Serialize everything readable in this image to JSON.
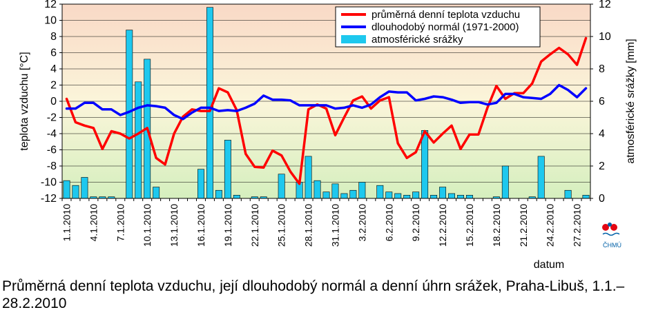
{
  "caption": "Průměrná denní teplota vzduchu, její dlouhodobý normál a denní úhrn srážek, Praha-Libuš, 1.1.–28.2.2010",
  "logo": {
    "text": "ČHMÚ",
    "icon": "chmu-logo-icon"
  },
  "colors": {
    "temp": "#ff0000",
    "normal": "#0000ff",
    "precip_fill": "#1ec8ee",
    "precip_stroke": "#000000"
  },
  "chart_data": {
    "type": "bar+line",
    "xlabel": "datum",
    "ylabel_left": "teplota vzduchu [°C]",
    "ylabel_right": "atmosférické srážky [mm]",
    "ylim_left": [
      -12,
      12
    ],
    "ylim_right": [
      0,
      12
    ],
    "yticks_left": [
      -12,
      -10,
      -8,
      -6,
      -4,
      -2,
      0,
      2,
      4,
      6,
      8,
      10,
      12
    ],
    "yticks_right": [
      0,
      2,
      4,
      6,
      8,
      10,
      12
    ],
    "xtick_labels": [
      "1.1.2010",
      "4.1.2010",
      "7.1.2010",
      "10.1.2010",
      "13.1.2010",
      "16.1.2010",
      "19.1.2010",
      "22.1.2010",
      "25.1.2010",
      "28.1.2010",
      "31.1.2010",
      "3.2.2010",
      "6.2.2010",
      "9.2.2010",
      "12.2.2010",
      "15.2.2010",
      "18.2.2010",
      "21.2.2010",
      "24.2.2010",
      "27.2.2010"
    ],
    "xtick_step_days": 3,
    "grid": "horizontal",
    "legend_position": "top-right",
    "legend": [
      "průměrná denní teplota vzduchu",
      "dlouhodobý normál (1971-2000)",
      "atmosférické srážky"
    ],
    "background_gradient": [
      "#f9d9c6",
      "#fbf5da",
      "#d5efbe"
    ],
    "series": [
      {
        "name": "průměrná denní teplota vzduchu",
        "type": "line",
        "axis": "left",
        "color": "#ff0000",
        "values": [
          0.3,
          -2.6,
          -3.0,
          -3.3,
          -5.9,
          -3.7,
          -4.0,
          -4.6,
          -4.0,
          -3.3,
          -7.0,
          -7.8,
          -4.0,
          -1.9,
          -1.0,
          -1.2,
          -1.2,
          1.6,
          1.1,
          -1.1,
          -6.5,
          -8.1,
          -8.2,
          -6.1,
          -6.7,
          -8.7,
          -10.2,
          -1.0,
          -0.4,
          -0.9,
          -4.2,
          -2.0,
          0.1,
          0.6,
          -0.9,
          0.1,
          0.5,
          -5.2,
          -7.0,
          -6.3,
          -3.7,
          -5.1,
          -4.0,
          -3.0,
          -5.9,
          -4.1,
          -4.1,
          -0.8,
          1.9,
          0.3,
          1.0,
          1.0,
          2.2,
          4.9,
          5.8,
          6.6,
          5.8,
          4.5,
          7.8
        ]
      },
      {
        "name": "dlouhodobý normál (1971-2000)",
        "type": "line",
        "axis": "left",
        "color": "#0000ff",
        "values": [
          -0.9,
          -0.9,
          -0.2,
          -0.2,
          -1.0,
          -1.0,
          -1.7,
          -1.3,
          -0.8,
          -0.5,
          -0.6,
          -0.8,
          -1.7,
          -2.2,
          -1.4,
          -0.8,
          -0.8,
          -1.2,
          -1.1,
          -1.2,
          -0.8,
          -0.3,
          0.7,
          0.2,
          0.2,
          0.1,
          -0.5,
          -0.5,
          -0.5,
          -0.5,
          -0.9,
          -0.8,
          -0.5,
          -0.8,
          -0.4,
          0.5,
          1.2,
          1.1,
          1.1,
          0.1,
          0.3,
          0.6,
          0.5,
          0.2,
          -0.2,
          -0.1,
          -0.1,
          -0.4,
          -0.2,
          0.9,
          0.9,
          0.5,
          0.4,
          0.3,
          0.9,
          2.0,
          1.4,
          0.5,
          1.6
        ]
      },
      {
        "name": "atmosférické srážky",
        "type": "bar",
        "axis": "right",
        "color": "#1ec8ee",
        "values": [
          1.1,
          0.8,
          1.3,
          0.1,
          0.1,
          0.1,
          0,
          10.4,
          7.2,
          8.6,
          0.7,
          0,
          0,
          0,
          0,
          1.8,
          11.8,
          0.5,
          3.6,
          0.2,
          0,
          0.1,
          0.1,
          0,
          1.5,
          0,
          1.0,
          2.6,
          1.1,
          0.4,
          0.9,
          0.3,
          0.5,
          1.0,
          0,
          0.8,
          0.4,
          0.3,
          0.2,
          0.4,
          4.2,
          0.2,
          0.7,
          0.3,
          0.2,
          0.2,
          0,
          0,
          0.1,
          2.0,
          0,
          0,
          0.1,
          2.6,
          0,
          0,
          0.5,
          0,
          0.2
        ]
      }
    ]
  }
}
